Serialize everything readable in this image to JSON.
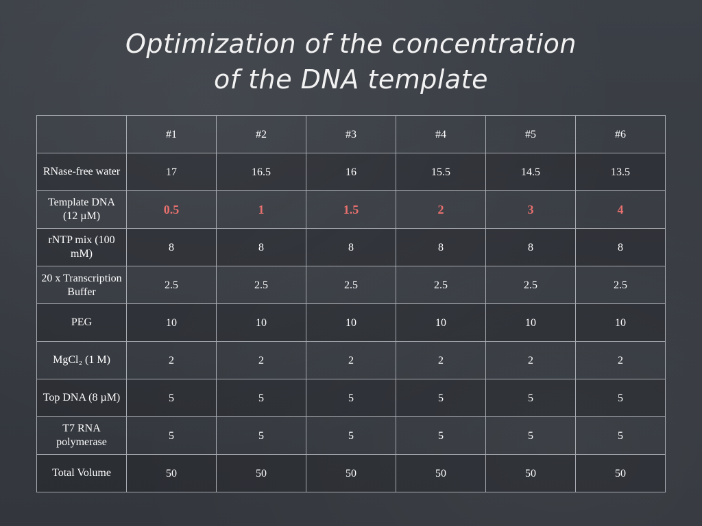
{
  "title": {
    "line1": "Optimization of the concentration",
    "line2": "of the DNA template"
  },
  "table": {
    "headers": [
      "",
      "#1",
      "#2",
      "#3",
      "#4",
      "#5",
      "#6"
    ],
    "rows": [
      {
        "label": "RNase-free water",
        "values": [
          "17",
          "16.5",
          "16",
          "15.5",
          "14.5",
          "13.5"
        ]
      },
      {
        "label": "Template DNA (12 µM)",
        "values": [
          "0.5",
          "1",
          "1.5",
          "2",
          "3",
          "4"
        ]
      },
      {
        "label": "rNTP mix (100 mM)",
        "values": [
          "8",
          "8",
          "8",
          "8",
          "8",
          "8"
        ]
      },
      {
        "label": "20 x Transcription Buffer",
        "values": [
          "2.5",
          "2.5",
          "2.5",
          "2.5",
          "2.5",
          "2.5"
        ]
      },
      {
        "label": "PEG",
        "values": [
          "10",
          "10",
          "10",
          "10",
          "10",
          "10"
        ]
      },
      {
        "label": "MgCl₂ (1 M)",
        "values": [
          "2",
          "2",
          "2",
          "2",
          "2",
          "2"
        ]
      },
      {
        "label": "Top DNA (8 µM)",
        "values": [
          "5",
          "5",
          "5",
          "5",
          "5",
          "5"
        ]
      },
      {
        "label": "T7 RNA polymerase",
        "values": [
          "5",
          "5",
          "5",
          "5",
          "5",
          "5"
        ]
      },
      {
        "label": "Total Volume",
        "values": [
          "50",
          "50",
          "50",
          "50",
          "50",
          "50"
        ]
      }
    ]
  },
  "colors": {
    "background": "#363a40",
    "text": "#ffffff",
    "highlight": "#e8706e",
    "grid": "#a9acb2"
  }
}
